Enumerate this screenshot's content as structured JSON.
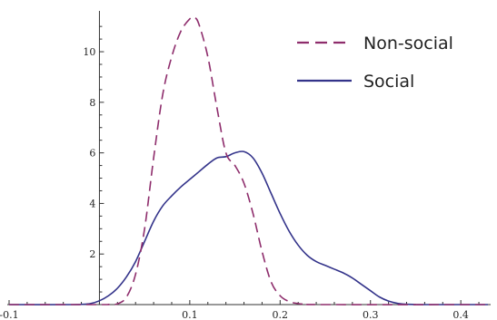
{
  "chart_data": {
    "type": "line",
    "xlim": [
      -0.1,
      0.43
    ],
    "ylim": [
      0,
      11.4
    ],
    "x_ticks": [
      "-0.1",
      "0.1",
      "0.2",
      "0.3",
      "0.4"
    ],
    "y_ticks": [
      "2",
      "4",
      "6",
      "8",
      "10"
    ],
    "legend_position": "top-right",
    "series": [
      {
        "name": "Non-social",
        "color": "#8e2d6c",
        "dashed": true,
        "points": [
          [
            -0.1,
            0
          ],
          [
            0.0,
            0
          ],
          [
            0.01,
            0.005
          ],
          [
            0.02,
            0.03
          ],
          [
            0.03,
            0.3
          ],
          [
            0.04,
            1.2
          ],
          [
            0.05,
            3.0
          ],
          [
            0.06,
            5.8
          ],
          [
            0.07,
            8.3
          ],
          [
            0.08,
            9.8
          ],
          [
            0.09,
            10.8
          ],
          [
            0.1,
            11.3
          ],
          [
            0.105,
            11.35
          ],
          [
            0.11,
            11.1
          ],
          [
            0.12,
            9.8
          ],
          [
            0.13,
            7.8
          ],
          [
            0.14,
            6.0
          ],
          [
            0.15,
            5.5
          ],
          [
            0.16,
            4.8
          ],
          [
            0.17,
            3.6
          ],
          [
            0.18,
            2.1
          ],
          [
            0.19,
            0.9
          ],
          [
            0.2,
            0.35
          ],
          [
            0.21,
            0.12
          ],
          [
            0.22,
            0.04
          ],
          [
            0.23,
            0.01
          ],
          [
            0.25,
            0
          ],
          [
            0.43,
            0
          ]
        ]
      },
      {
        "name": "Social",
        "color": "#33338a",
        "dashed": false,
        "points": [
          [
            -0.1,
            0
          ],
          [
            -0.03,
            0
          ],
          [
            -0.02,
            0.01
          ],
          [
            -0.01,
            0.04
          ],
          [
            0.0,
            0.15
          ],
          [
            0.01,
            0.35
          ],
          [
            0.02,
            0.65
          ],
          [
            0.03,
            1.1
          ],
          [
            0.04,
            1.7
          ],
          [
            0.05,
            2.5
          ],
          [
            0.06,
            3.3
          ],
          [
            0.07,
            3.9
          ],
          [
            0.08,
            4.3
          ],
          [
            0.09,
            4.65
          ],
          [
            0.1,
            4.95
          ],
          [
            0.11,
            5.25
          ],
          [
            0.12,
            5.55
          ],
          [
            0.13,
            5.8
          ],
          [
            0.14,
            5.85
          ],
          [
            0.15,
            6.0
          ],
          [
            0.16,
            6.05
          ],
          [
            0.17,
            5.8
          ],
          [
            0.18,
            5.2
          ],
          [
            0.19,
            4.4
          ],
          [
            0.2,
            3.6
          ],
          [
            0.21,
            2.9
          ],
          [
            0.22,
            2.35
          ],
          [
            0.23,
            1.95
          ],
          [
            0.24,
            1.7
          ],
          [
            0.25,
            1.55
          ],
          [
            0.26,
            1.4
          ],
          [
            0.27,
            1.25
          ],
          [
            0.28,
            1.05
          ],
          [
            0.29,
            0.8
          ],
          [
            0.3,
            0.55
          ],
          [
            0.31,
            0.3
          ],
          [
            0.32,
            0.14
          ],
          [
            0.33,
            0.05
          ],
          [
            0.34,
            0.015
          ],
          [
            0.35,
            0.003
          ],
          [
            0.36,
            0
          ],
          [
            0.43,
            0
          ]
        ]
      }
    ]
  }
}
